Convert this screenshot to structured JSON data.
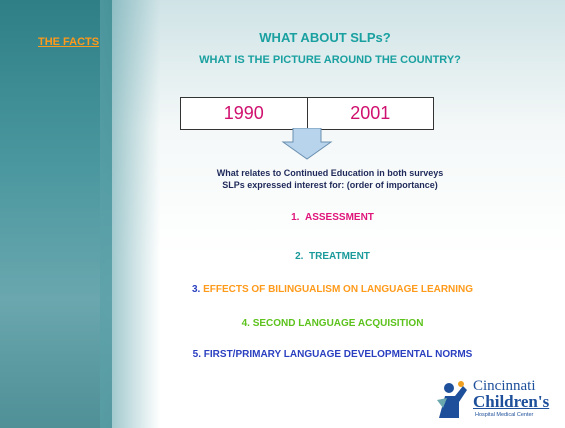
{
  "header": {
    "section": "THE FACTS",
    "title": "WHAT ABOUT SLPs?",
    "subtitle": "WHAT IS THE PICTURE AROUND THE COUNTRY?"
  },
  "years": [
    "1990",
    "2001"
  ],
  "intro": [
    "What relates to Continued Education in both surveys",
    "SLPs expressed interest for: (order of importance)"
  ],
  "items": [
    {
      "number": "1.",
      "text": "ASSESSMENT"
    },
    {
      "number": "2.",
      "text": "TREATMENT"
    },
    {
      "number": "3.",
      "text": "EFFECTS OF BILINGUALISM ON LANGUAGE LEARNING"
    },
    {
      "number": "4.",
      "text": "SECOND LANGUAGE ACQUISITION"
    },
    {
      "number": "5.",
      "text": "FIRST/PRIMARY LANGUAGE DEVELOPMENTAL NORMS"
    }
  ],
  "logo": {
    "line1": "Cincinnati",
    "line2": "Children's",
    "line3": "Hospital Medical Center"
  }
}
